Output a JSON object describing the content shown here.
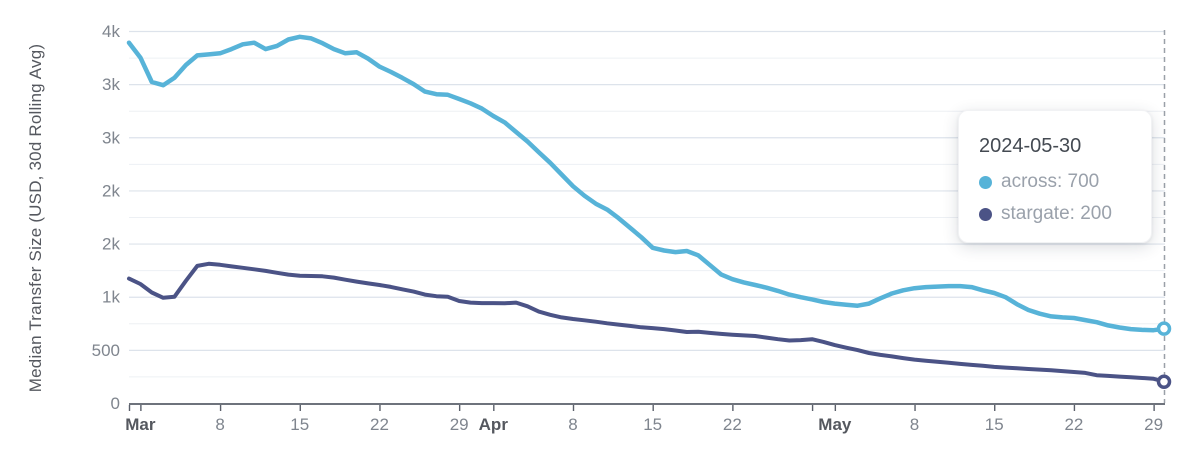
{
  "y_axis_title": "Median Transfer Size (USD, 30d Rolling Avg)",
  "tooltip": {
    "title": "2024-05-30",
    "rows": [
      {
        "series": "across",
        "text": "across: 700",
        "dot_color": "#57b3d8"
      },
      {
        "series": "stargate",
        "text": "stargate: 200",
        "dot_color": "#4b5386"
      }
    ]
  },
  "colors": {
    "background": "#ffffff",
    "grid_major": "#dde3eb",
    "grid_minor": "#edf0f4",
    "axis_line": "#5a5f6a",
    "label_month": "#55585f",
    "label_number": "#7f858e",
    "cursor_dash": "#9aa0a8",
    "marker_fill": "#ffffff"
  },
  "chart_data": {
    "type": "line",
    "title": "",
    "xlabel": "",
    "ylabel": "Median Transfer Size (USD, 30d Rolling Avg)",
    "x_start_date": "2024-02-29",
    "x_end_date": "2024-05-30",
    "x_unit": "day",
    "ylim": [
      0,
      3500
    ],
    "grid": "on",
    "legend_position": "tooltip-overlay",
    "y_ticks": [
      {
        "value": 0,
        "label": "0"
      },
      {
        "value": 500,
        "label": "500"
      },
      {
        "value": 1000,
        "label": "1k"
      },
      {
        "value": 1500,
        "label": "2k"
      },
      {
        "value": 2000,
        "label": "2k"
      },
      {
        "value": 2500,
        "label": "3k"
      },
      {
        "value": 3000,
        "label": "3k"
      },
      {
        "value": 3500,
        "label": "4k"
      }
    ],
    "y_minor_ticks": [
      250,
      750,
      1250,
      1750,
      2250,
      2750,
      3250
    ],
    "x_ticks": [
      {
        "i": 0,
        "label": "",
        "bold": false
      },
      {
        "i": 1,
        "label": "Mar",
        "bold": true
      },
      {
        "i": 8,
        "label": "8",
        "bold": false
      },
      {
        "i": 15,
        "label": "15",
        "bold": false
      },
      {
        "i": 22,
        "label": "22",
        "bold": false
      },
      {
        "i": 29,
        "label": "29",
        "bold": false
      },
      {
        "i": 32,
        "label": "Apr",
        "bold": true
      },
      {
        "i": 39,
        "label": "8",
        "bold": false
      },
      {
        "i": 46,
        "label": "15",
        "bold": false
      },
      {
        "i": 53,
        "label": "22",
        "bold": false
      },
      {
        "i": 60,
        "label": "",
        "bold": false
      },
      {
        "i": 62,
        "label": "May",
        "bold": true
      },
      {
        "i": 69,
        "label": "8",
        "bold": false
      },
      {
        "i": 76,
        "label": "15",
        "bold": false
      },
      {
        "i": 83,
        "label": "22",
        "bold": false
      },
      {
        "i": 90,
        "label": "29",
        "bold": false
      }
    ],
    "cursor": {
      "date": "2024-05-30",
      "index": 91,
      "values": {
        "across": 700,
        "stargate": 200
      }
    },
    "series": [
      {
        "name": "across",
        "color": "#57b3d8",
        "stroke_width": 4.5,
        "values": [
          3390,
          3250,
          3020,
          2990,
          3060,
          3180,
          3270,
          3280,
          3290,
          3330,
          3375,
          3390,
          3330,
          3360,
          3420,
          3445,
          3430,
          3385,
          3330,
          3290,
          3300,
          3240,
          3165,
          3115,
          3060,
          3000,
          2930,
          2905,
          2900,
          2860,
          2820,
          2770,
          2700,
          2640,
          2550,
          2460,
          2360,
          2260,
          2150,
          2040,
          1950,
          1875,
          1820,
          1740,
          1650,
          1560,
          1460,
          1435,
          1420,
          1430,
          1390,
          1300,
          1210,
          1165,
          1135,
          1110,
          1085,
          1055,
          1020,
          995,
          975,
          950,
          935,
          925,
          915,
          935,
          985,
          1030,
          1060,
          1080,
          1090,
          1095,
          1100,
          1100,
          1090,
          1060,
          1035,
          995,
          930,
          875,
          840,
          815,
          805,
          800,
          780,
          760,
          730,
          710,
          695,
          688,
          685,
          700
        ]
      },
      {
        "name": "stargate",
        "color": "#4b5386",
        "stroke_width": 4,
        "values": [
          1170,
          1120,
          1040,
          990,
          1000,
          1150,
          1290,
          1310,
          1300,
          1285,
          1272,
          1258,
          1243,
          1225,
          1208,
          1197,
          1195,
          1192,
          1180,
          1160,
          1142,
          1125,
          1110,
          1092,
          1070,
          1048,
          1020,
          1005,
          1000,
          960,
          945,
          940,
          940,
          938,
          945,
          910,
          860,
          830,
          805,
          790,
          778,
          765,
          750,
          738,
          725,
          712,
          705,
          695,
          682,
          668,
          670,
          660,
          650,
          643,
          636,
          630,
          615,
          600,
          588,
          592,
          600,
          575,
          545,
          520,
          498,
          470,
          453,
          438,
          422,
          408,
          398,
          388,
          378,
          368,
          358,
          350,
          340,
          333,
          327,
          320,
          314,
          308,
          300,
          292,
          283,
          262,
          255,
          248,
          242,
          235,
          228,
          200
        ]
      }
    ]
  }
}
